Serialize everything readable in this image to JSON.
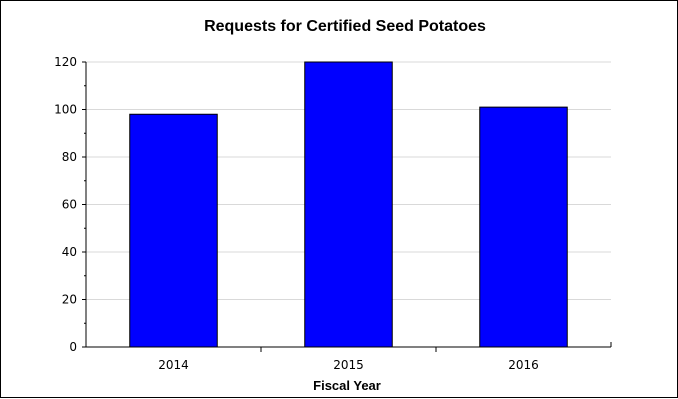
{
  "chart_data": {
    "type": "bar",
    "title": "Requests for Certified Seed Potatoes",
    "xlabel": "Fiscal Year",
    "ylabel": "",
    "categories": [
      "2014",
      "2015",
      "2016"
    ],
    "values": [
      98,
      120,
      101
    ],
    "ylim": [
      0,
      120
    ],
    "yticks": [
      "0",
      "20",
      "40",
      "60",
      "80",
      "100",
      "120"
    ],
    "grid": true,
    "legend": "none",
    "colors": {
      "bar": "#0000ff",
      "bar_edge": "#000000",
      "grid": "#d9d9d9",
      "axis": "#000000"
    }
  }
}
